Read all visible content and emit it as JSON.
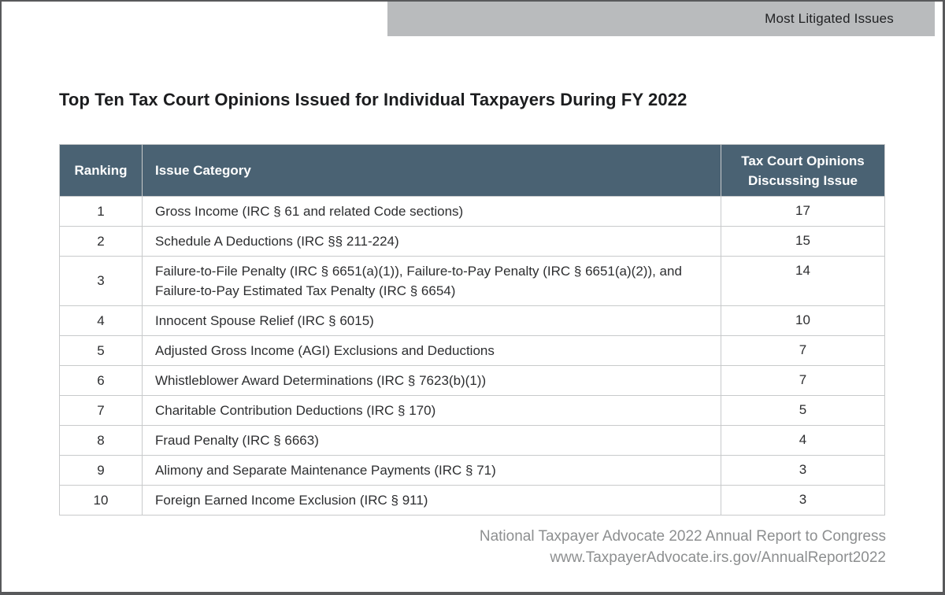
{
  "page": {
    "banner_label": "Most Litigated Issues",
    "title": "Top Ten Tax Court Opinions Issued for Individual Taxpayers During FY 2022",
    "footer_line1": "National Taxpayer Advocate 2022 Annual Report to Congress",
    "footer_line2": "www.TaxpayerAdvocate.irs.gov/AnnualReport2022"
  },
  "table": {
    "headers": {
      "ranking": "Ranking",
      "issue": "Issue Category",
      "opinions": "Tax Court Opinions\nDiscussing Issue"
    },
    "rows": [
      {
        "rank": "1",
        "issue": "Gross Income (IRC § 61 and related Code sections)",
        "opinions": "17"
      },
      {
        "rank": "2",
        "issue": "Schedule A Deductions (IRC §§ 211-224)",
        "opinions": "15"
      },
      {
        "rank": "3",
        "issue": "Failure-to-File Penalty (IRC § 6651(a)(1)), Failure-to-Pay Penalty (IRC § 6651(a)(2)), and Failure-to-Pay Estimated Tax Penalty (IRC § 6654)",
        "opinions": "14"
      },
      {
        "rank": "4",
        "issue": "Innocent Spouse Relief (IRC § 6015)",
        "opinions": "10"
      },
      {
        "rank": "5",
        "issue": "Adjusted Gross Income (AGI) Exclusions and Deductions",
        "opinions": "7"
      },
      {
        "rank": "6",
        "issue": "Whistleblower Award Determinations (IRC § 7623(b)(1))",
        "opinions": "7"
      },
      {
        "rank": "7",
        "issue": "Charitable Contribution Deductions (IRC § 170)",
        "opinions": "5"
      },
      {
        "rank": "8",
        "issue": "Fraud Penalty (IRC § 6663)",
        "opinions": "4"
      },
      {
        "rank": "9",
        "issue": "Alimony and Separate Maintenance Payments (IRC § 71)",
        "opinions": "3"
      },
      {
        "rank": "10",
        "issue": "Foreign Earned Income Exclusion (IRC § 911)",
        "opinions": "3"
      }
    ]
  },
  "colors": {
    "table_header_bg": "#4a6273",
    "banner_bg": "#b9bbbd",
    "page_border": "#58595b",
    "grid_border": "#c8cacb",
    "footer_text": "#8d8f90"
  }
}
